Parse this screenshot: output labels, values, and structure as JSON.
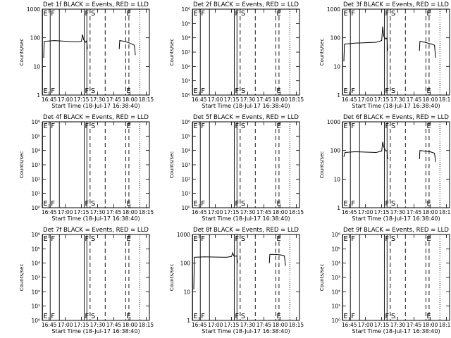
{
  "x_axis": {
    "label": "Start Time (18-Jul-17 16:38:40)",
    "ticks": [
      "16:45",
      "17:00",
      "17:15",
      "17:30",
      "17:45",
      "18:00",
      "18:15"
    ],
    "range": [
      "16:38:40",
      "18:18:00"
    ]
  },
  "y_axis_label": "Counts/sec",
  "colors": {
    "events": "#000000",
    "lld": "#ff0000",
    "background": "#ffffff"
  },
  "chart_data": [
    {
      "type": "line",
      "title": "Det 1f BLACK = Events, RED = LLD",
      "yscale": "log",
      "ylim": [
        1,
        1000
      ],
      "ytick_labels": [
        "1",
        "10",
        "100",
        "1000"
      ],
      "markers": [
        {
          "label": "E",
          "time": "16:38:55",
          "style": "solid"
        },
        {
          "label": "F",
          "time": "16:46:00",
          "style": "solid"
        },
        {
          "label": "F",
          "time": "17:17:30",
          "style": "solid"
        },
        {
          "label": "S",
          "time": "17:23:00",
          "style": "dashed"
        },
        {
          "label": "E",
          "time": "17:56:00",
          "style": "dashed"
        }
      ],
      "extra_lines": [
        {
          "time": "16:54:30",
          "style": "solid"
        },
        {
          "time": "17:20:00",
          "style": "solid"
        },
        {
          "time": "17:37:00",
          "style": "dashed"
        },
        {
          "time": "17:59:00",
          "style": "dashed"
        },
        {
          "time": "18:09:00",
          "style": "dotted"
        }
      ],
      "series": [
        {
          "name": "Events",
          "color": "#000000",
          "segments": [
            [
              [
                "16:40:00",
                20
              ],
              [
                "16:40:30",
                75
              ],
              [
                "16:50:00",
                80
              ],
              [
                "17:10:00",
                72
              ],
              [
                "17:15:00",
                75
              ],
              [
                "17:16:00",
                130
              ],
              [
                "17:17:00",
                85
              ],
              [
                "17:19:00",
                70
              ],
              [
                "17:20:00",
                80
              ],
              [
                "17:20:30",
                40
              ]
            ],
            [
              [
                "17:50:00",
                40
              ],
              [
                "17:50:30",
                80
              ],
              [
                "17:55:00",
                75
              ],
              [
                "18:00:00",
                65
              ],
              [
                "18:04:00",
                55
              ],
              [
                "18:05:00",
                25
              ]
            ]
          ]
        }
      ]
    },
    {
      "type": "line",
      "title": "Det 2f BLACK = Events, RED = LLD",
      "yscale": "log",
      "ylim": [
        1,
        1000000
      ],
      "ytick_labels": [
        "10⁰",
        "10¹",
        "10²",
        "10³",
        "10⁴",
        "10⁵",
        "10⁶"
      ],
      "markers": [
        {
          "label": "E",
          "time": "16:38:55",
          "style": "solid"
        },
        {
          "label": "F",
          "time": "16:46:00",
          "style": "solid"
        },
        {
          "label": "F",
          "time": "17:17:30",
          "style": "solid"
        },
        {
          "label": "S",
          "time": "17:23:00",
          "style": "dashed"
        },
        {
          "label": "E",
          "time": "17:56:00",
          "style": "dashed"
        }
      ],
      "extra_lines": [
        {
          "time": "16:54:30",
          "style": "solid"
        },
        {
          "time": "17:20:00",
          "style": "solid"
        },
        {
          "time": "17:37:00",
          "style": "dashed"
        },
        {
          "time": "17:59:00",
          "style": "dashed"
        },
        {
          "time": "18:09:00",
          "style": "dotted"
        }
      ],
      "series": []
    },
    {
      "type": "line",
      "title": "Det 3f BLACK = Events, RED = LLD",
      "yscale": "log",
      "ylim": [
        1,
        1000
      ],
      "ytick_labels": [
        "1",
        "10",
        "100",
        "1000"
      ],
      "markers": [
        {
          "label": "E",
          "time": "16:38:55",
          "style": "solid"
        },
        {
          "label": "F",
          "time": "16:46:00",
          "style": "solid"
        },
        {
          "label": "F",
          "time": "17:17:30",
          "style": "solid"
        },
        {
          "label": "S",
          "time": "17:23:00",
          "style": "dashed"
        },
        {
          "label": "E",
          "time": "17:56:00",
          "style": "dashed"
        }
      ],
      "extra_lines": [
        {
          "time": "16:54:30",
          "style": "solid"
        },
        {
          "time": "17:20:00",
          "style": "solid"
        },
        {
          "time": "17:37:00",
          "style": "dashed"
        },
        {
          "time": "17:59:00",
          "style": "dashed"
        },
        {
          "time": "18:09:00",
          "style": "dotted"
        }
      ],
      "series": [
        {
          "name": "Events",
          "color": "#000000",
          "segments": [
            [
              [
                "16:40:00",
                15
              ],
              [
                "16:40:30",
                60
              ],
              [
                "16:50:00",
                65
              ],
              [
                "17:10:00",
                70
              ],
              [
                "17:15:00",
                80
              ],
              [
                "17:16:00",
                250
              ],
              [
                "17:17:00",
                110
              ],
              [
                "17:19:00",
                90
              ],
              [
                "17:20:00",
                100
              ],
              [
                "17:20:30",
                35
              ]
            ],
            [
              [
                "17:50:00",
                35
              ],
              [
                "17:50:30",
                75
              ],
              [
                "17:55:00",
                70
              ],
              [
                "18:00:00",
                62
              ],
              [
                "18:04:00",
                55
              ],
              [
                "18:05:00",
                20
              ]
            ]
          ]
        }
      ]
    },
    {
      "type": "line",
      "title": "Det 4f BLACK = Events, RED = LLD",
      "yscale": "log",
      "ylim": [
        1,
        1000000
      ],
      "ytick_labels": [
        "10⁰",
        "10¹",
        "10²",
        "10³",
        "10⁴",
        "10⁵",
        "10⁶"
      ],
      "markers": [
        {
          "label": "E",
          "time": "16:38:55",
          "style": "solid"
        },
        {
          "label": "F",
          "time": "16:46:00",
          "style": "solid"
        },
        {
          "label": "F",
          "time": "17:17:30",
          "style": "solid"
        },
        {
          "label": "S",
          "time": "17:23:00",
          "style": "dashed"
        },
        {
          "label": "E",
          "time": "17:56:00",
          "style": "dashed"
        }
      ],
      "extra_lines": [
        {
          "time": "16:54:30",
          "style": "solid"
        },
        {
          "time": "17:20:00",
          "style": "solid"
        },
        {
          "time": "17:37:00",
          "style": "dashed"
        },
        {
          "time": "17:59:00",
          "style": "dashed"
        },
        {
          "time": "18:09:00",
          "style": "dotted"
        }
      ],
      "series": []
    },
    {
      "type": "line",
      "title": "Det 5f BLACK = Events, RED = LLD",
      "yscale": "log",
      "ylim": [
        1,
        1000000
      ],
      "ytick_labels": [
        "10⁰",
        "10¹",
        "10²",
        "10³",
        "10⁴",
        "10⁵",
        "10⁶"
      ],
      "markers": [
        {
          "label": "E",
          "time": "16:38:55",
          "style": "solid"
        },
        {
          "label": "F",
          "time": "16:46:00",
          "style": "solid"
        },
        {
          "label": "F",
          "time": "17:17:30",
          "style": "solid"
        },
        {
          "label": "S",
          "time": "17:23:00",
          "style": "dashed"
        },
        {
          "label": "E",
          "time": "17:56:00",
          "style": "dashed"
        }
      ],
      "extra_lines": [
        {
          "time": "16:54:30",
          "style": "solid"
        },
        {
          "time": "17:20:00",
          "style": "solid"
        },
        {
          "time": "17:37:00",
          "style": "dashed"
        },
        {
          "time": "17:59:00",
          "style": "dashed"
        },
        {
          "time": "18:09:00",
          "style": "dotted"
        }
      ],
      "series": []
    },
    {
      "type": "line",
      "title": "Det 6f BLACK = Events, RED = LLD",
      "yscale": "log",
      "ylim": [
        1,
        1000
      ],
      "ytick_labels": [
        "1",
        "10",
        "100",
        "1000"
      ],
      "markers": [
        {
          "label": "E",
          "time": "16:38:55",
          "style": "solid"
        },
        {
          "label": "F",
          "time": "16:46:00",
          "style": "solid"
        },
        {
          "label": "F",
          "time": "17:17:30",
          "style": "solid"
        },
        {
          "label": "S",
          "time": "17:23:00",
          "style": "dashed"
        },
        {
          "label": "E",
          "time": "17:56:00",
          "style": "dashed"
        }
      ],
      "extra_lines": [
        {
          "time": "16:54:30",
          "style": "solid"
        },
        {
          "time": "17:20:00",
          "style": "solid"
        },
        {
          "time": "17:37:00",
          "style": "dashed"
        },
        {
          "time": "17:59:00",
          "style": "dashed"
        },
        {
          "time": "18:09:00",
          "style": "dotted"
        }
      ],
      "series": [
        {
          "name": "Events",
          "color": "#000000",
          "segments": [
            [
              [
                "16:40:00",
                60
              ],
              [
                "16:41:00",
                85
              ],
              [
                "16:50:00",
                90
              ],
              [
                "17:10:00",
                85
              ],
              [
                "17:15:00",
                95
              ],
              [
                "17:16:00",
                200
              ],
              [
                "17:17:00",
                130
              ],
              [
                "17:19:00",
                95
              ],
              [
                "17:20:00",
                100
              ],
              [
                "17:20:30",
                50
              ]
            ],
            [
              [
                "17:50:00",
                50
              ],
              [
                "17:50:30",
                100
              ],
              [
                "17:55:00",
                95
              ],
              [
                "18:00:00",
                90
              ],
              [
                "18:04:00",
                80
              ],
              [
                "18:05:00",
                40
              ]
            ]
          ]
        }
      ]
    },
    {
      "type": "line",
      "title": "Det 7f BLACK = Events, RED = LLD",
      "yscale": "log",
      "ylim": [
        1,
        1000000
      ],
      "ytick_labels": [
        "10⁰",
        "10¹",
        "10²",
        "10³",
        "10⁴",
        "10⁵",
        "10⁶"
      ],
      "markers": [
        {
          "label": "E",
          "time": "16:38:55",
          "style": "solid"
        },
        {
          "label": "F",
          "time": "16:46:00",
          "style": "solid"
        },
        {
          "label": "F",
          "time": "17:17:30",
          "style": "solid"
        },
        {
          "label": "S",
          "time": "17:23:00",
          "style": "dashed"
        },
        {
          "label": "E",
          "time": "17:56:00",
          "style": "dashed"
        }
      ],
      "extra_lines": [
        {
          "time": "16:54:30",
          "style": "solid"
        },
        {
          "time": "17:20:00",
          "style": "solid"
        },
        {
          "time": "17:37:00",
          "style": "dashed"
        },
        {
          "time": "17:59:00",
          "style": "dashed"
        },
        {
          "time": "18:09:00",
          "style": "dotted"
        }
      ],
      "series": []
    },
    {
      "type": "line",
      "title": "Det 8f BLACK = Events, RED = LLD",
      "yscale": "log",
      "ylim": [
        1,
        1000
      ],
      "ytick_labels": [
        "1",
        "10",
        "100",
        "1000"
      ],
      "markers": [
        {
          "label": "E",
          "time": "16:38:55",
          "style": "solid"
        },
        {
          "label": "F",
          "time": "16:46:00",
          "style": "solid"
        },
        {
          "label": "F",
          "time": "17:17:30",
          "style": "solid"
        },
        {
          "label": "S",
          "time": "17:23:00",
          "style": "dashed"
        },
        {
          "label": "E",
          "time": "17:56:00",
          "style": "dashed"
        }
      ],
      "extra_lines": [
        {
          "time": "16:54:30",
          "style": "solid"
        },
        {
          "time": "17:20:00",
          "style": "solid"
        },
        {
          "time": "17:37:00",
          "style": "dashed"
        },
        {
          "time": "17:59:00",
          "style": "dashed"
        },
        {
          "time": "18:09:00",
          "style": "dotted"
        }
      ],
      "series": [
        {
          "name": "Events",
          "color": "#000000",
          "segments": [
            [
              [
                "16:40:00",
                12
              ],
              [
                "16:40:30",
                160
              ],
              [
                "16:50:00",
                165
              ],
              [
                "17:10:00",
                160
              ],
              [
                "17:15:00",
                170
              ],
              [
                "17:16:00",
                230
              ],
              [
                "17:17:00",
                180
              ],
              [
                "17:19:00",
                175
              ],
              [
                "17:20:00",
                180
              ],
              [
                "17:20:30",
                100
              ]
            ],
            [
              [
                "17:50:00",
                100
              ],
              [
                "17:50:30",
                200
              ],
              [
                "17:55:00",
                200
              ],
              [
                "18:00:00",
                195
              ],
              [
                "18:04:00",
                180
              ],
              [
                "18:05:00",
                80
              ]
            ]
          ]
        }
      ]
    },
    {
      "type": "line",
      "title": "Det 9f BLACK = Events, RED = LLD",
      "yscale": "log",
      "ylim": [
        1,
        1000000
      ],
      "ytick_labels": [
        "10⁰",
        "10¹",
        "10²",
        "10³",
        "10⁴",
        "10⁵",
        "10⁶"
      ],
      "markers": [
        {
          "label": "E",
          "time": "16:38:55",
          "style": "solid"
        },
        {
          "label": "F",
          "time": "16:46:00",
          "style": "solid"
        },
        {
          "label": "F",
          "time": "17:17:30",
          "style": "solid"
        },
        {
          "label": "S",
          "time": "17:23:00",
          "style": "dashed"
        },
        {
          "label": "E",
          "time": "17:56:00",
          "style": "dashed"
        }
      ],
      "extra_lines": [
        {
          "time": "16:54:30",
          "style": "solid"
        },
        {
          "time": "17:20:00",
          "style": "solid"
        },
        {
          "time": "17:37:00",
          "style": "dashed"
        },
        {
          "time": "17:59:00",
          "style": "dashed"
        },
        {
          "time": "18:09:00",
          "style": "dotted"
        }
      ],
      "series": []
    }
  ]
}
